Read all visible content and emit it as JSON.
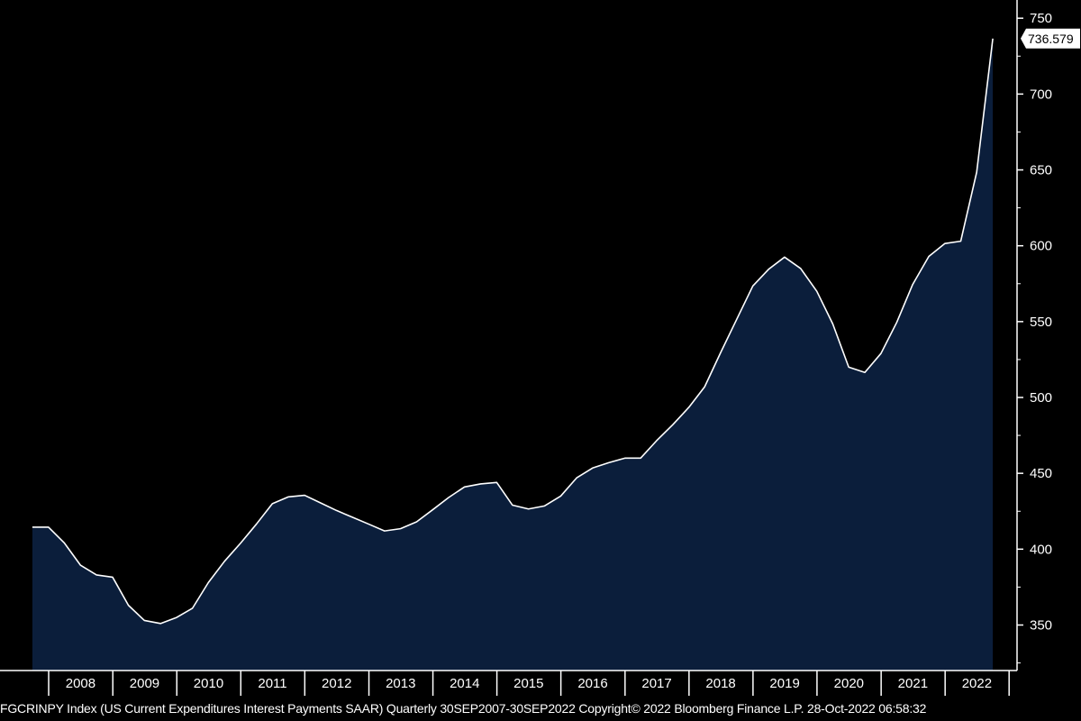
{
  "footer": {
    "text": "FGCRINPY Index (US Current Expenditures Interest Payments SAAR)  Quarterly 30SEP2007-30SEP2022  Copyright© 2022 Bloomberg Finance L.P.  28-Oct-2022 06:58:32"
  },
  "chart_data": {
    "type": "area",
    "title": "",
    "xlabel": "",
    "ylabel": "",
    "ylim": [
      320,
      762
    ],
    "y_ticks": [
      350,
      400,
      450,
      500,
      550,
      600,
      650,
      700,
      750
    ],
    "x_year_labels": [
      "2008",
      "2009",
      "2010",
      "2011",
      "2012",
      "2013",
      "2014",
      "2015",
      "2016",
      "2017",
      "2018",
      "2019",
      "2020",
      "2021",
      "2022"
    ],
    "last_value_label": "736.579",
    "colors": {
      "fill": "#0b1e3b",
      "line": "#ffffff",
      "background": "#000000",
      "axis": "#ffffff",
      "last_label_bg": "#ffffff"
    },
    "series": [
      {
        "x": [
          "2007-09-30",
          "2007-12-31",
          "2008-03-31",
          "2008-06-30",
          "2008-09-30",
          "2008-12-31",
          "2009-03-31",
          "2009-06-30",
          "2009-09-30",
          "2009-12-31",
          "2010-03-31",
          "2010-06-30",
          "2010-09-30",
          "2010-12-31",
          "2011-03-31",
          "2011-06-30",
          "2011-09-30",
          "2011-12-31",
          "2012-03-31",
          "2012-06-30",
          "2012-09-30",
          "2012-12-31",
          "2013-03-31",
          "2013-06-30",
          "2013-09-30",
          "2013-12-31",
          "2014-03-31",
          "2014-06-30",
          "2014-09-30",
          "2014-12-31",
          "2015-03-31",
          "2015-06-30",
          "2015-09-30",
          "2015-12-31",
          "2016-03-31",
          "2016-06-30",
          "2016-09-30",
          "2016-12-31",
          "2017-03-31",
          "2017-06-30",
          "2017-09-30",
          "2017-12-31",
          "2018-03-31",
          "2018-06-30",
          "2018-09-30",
          "2018-12-31",
          "2019-03-31",
          "2019-06-30",
          "2019-09-30",
          "2019-12-31",
          "2020-03-31",
          "2020-06-30",
          "2020-09-30",
          "2020-12-31",
          "2021-03-31",
          "2021-06-30",
          "2021-09-30",
          "2021-12-31",
          "2022-03-31",
          "2022-06-30",
          "2022-09-30"
        ],
        "values": [
          414.5,
          414.5,
          404,
          389.5,
          383,
          381.5,
          363,
          353,
          351,
          355,
          361,
          378,
          392,
          404,
          416.5,
          430,
          434.5,
          435.5,
          430.5,
          425.5,
          421,
          416.5,
          412,
          413.5,
          418,
          426,
          434,
          441,
          443,
          444,
          429,
          426.5,
          428.5,
          435,
          447,
          453.5,
          457,
          460,
          460,
          471.5,
          482,
          493.5,
          507,
          529.5,
          551.5,
          573.5,
          584.5,
          592.5,
          585,
          570,
          548.5,
          520,
          516.5,
          529,
          549.5,
          574.5,
          593,
          601.5,
          603,
          648.5,
          736.579
        ]
      }
    ]
  }
}
